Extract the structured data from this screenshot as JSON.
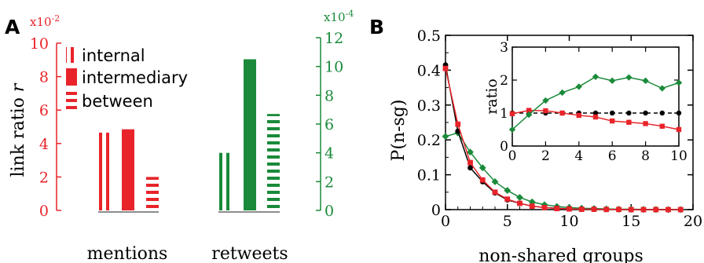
{
  "chart_data": [
    {
      "panel_label": "A",
      "type": "bar",
      "ylabel_text": "link ratio ",
      "ylabel_var": "r",
      "left_axis": {
        "multiplier": "x10",
        "exponent": "-2",
        "ylim": [
          0,
          10
        ],
        "ticks": [
          "0",
          "2",
          "4",
          "6",
          "8",
          "10"
        ],
        "color": "#e8242a"
      },
      "right_axis": {
        "multiplier": "x10",
        "exponent": "-4",
        "ylim": [
          0,
          12
        ],
        "ticks": [
          "0",
          "2",
          "4",
          "6",
          "8",
          "10",
          "12"
        ],
        "color": "#1a8a3a"
      },
      "categories": [
        "mentions",
        "retweets"
      ],
      "legend": [
        "internal",
        "intermediary",
        "between"
      ],
      "groups": [
        {
          "category": "mentions",
          "axis": "left",
          "color": "#e8242a",
          "values": {
            "internal": 4.65,
            "intermediary": 4.85,
            "between": 2.0
          }
        },
        {
          "category": "retweets",
          "axis": "right",
          "color": "#1a8a3a",
          "values": {
            "internal": 4.0,
            "intermediary": 10.5,
            "between": 6.7
          }
        }
      ]
    },
    {
      "panel_label": "B",
      "type": "line",
      "xlabel": "non-shared groups",
      "ylabel": "P(n-sg)",
      "xlim": [
        0,
        20
      ],
      "ylim": [
        0,
        0.5
      ],
      "xticks": [
        "0",
        "5",
        "10",
        "15",
        "20"
      ],
      "yticks": [
        "0",
        "0.1",
        "0.2",
        "0.3",
        "0.4",
        "0.5"
      ],
      "series": [
        {
          "color": "#000000",
          "marker": "circle",
          "x": [
            0,
            1,
            2,
            3,
            4,
            5,
            6,
            7,
            8,
            9,
            10,
            11,
            12,
            13,
            14,
            15,
            16,
            17,
            18,
            19
          ],
          "y": [
            0.415,
            0.225,
            0.12,
            0.08,
            0.048,
            0.028,
            0.018,
            0.01,
            0.006,
            0.004,
            0.002,
            0.001,
            0.001,
            0.0005,
            0.0005,
            0.0,
            0.0,
            0.0,
            0.0,
            0.0
          ]
        },
        {
          "color": "#e8242a",
          "marker": "square",
          "x": [
            0,
            1,
            2,
            3,
            4,
            5,
            6,
            7,
            8,
            9,
            10,
            11,
            12,
            13,
            14,
            15,
            16,
            17,
            18,
            19
          ],
          "y": [
            0.405,
            0.245,
            0.135,
            0.085,
            0.05,
            0.03,
            0.018,
            0.01,
            0.006,
            0.003,
            0.002,
            0.001,
            0.001,
            0.0005,
            0.0005,
            0.0,
            0.0,
            0.0,
            0.0,
            0.0
          ]
        },
        {
          "color": "#1a8a3a",
          "marker": "diamond",
          "x": [
            0,
            1,
            2,
            3,
            4,
            5,
            6,
            7,
            8,
            9,
            10,
            11,
            12,
            13,
            14,
            15,
            16,
            17,
            18,
            19
          ],
          "y": [
            0.21,
            0.22,
            0.165,
            0.12,
            0.08,
            0.055,
            0.035,
            0.022,
            0.014,
            0.009,
            0.006,
            0.004,
            0.003,
            0.002,
            0.001,
            0.001,
            0.0005,
            0.0005,
            0.0,
            0.0
          ]
        }
      ],
      "inset": {
        "ylabel": "ratio",
        "xlim": [
          0,
          10
        ],
        "ylim": [
          0,
          3
        ],
        "xticks": [
          "0",
          "2",
          "4",
          "6",
          "8",
          "10"
        ],
        "yticks": [
          "0",
          "1",
          "2",
          "3"
        ],
        "reference_y": 1,
        "series": [
          {
            "color": "#000000",
            "marker": "circle",
            "dashed": true,
            "x": [
              0,
              1,
              2,
              3,
              4,
              5,
              6,
              7,
              8,
              9,
              10
            ],
            "y": [
              1,
              1,
              1,
              1,
              1,
              1,
              1,
              1,
              1,
              1,
              1
            ]
          },
          {
            "color": "#e8242a",
            "marker": "square",
            "x": [
              0,
              1,
              2,
              3,
              4,
              5,
              6,
              7,
              8,
              9,
              10
            ],
            "y": [
              0.98,
              1.08,
              1.07,
              1.0,
              0.93,
              0.88,
              0.76,
              0.72,
              0.68,
              0.6,
              0.5
            ]
          },
          {
            "color": "#1a8a3a",
            "marker": "diamond",
            "x": [
              0,
              1,
              2,
              3,
              4,
              5,
              6,
              7,
              8,
              9,
              10
            ],
            "y": [
              0.5,
              0.95,
              1.38,
              1.62,
              1.8,
              2.1,
              1.98,
              2.08,
              1.98,
              1.75,
              1.92
            ]
          }
        ]
      }
    }
  ]
}
